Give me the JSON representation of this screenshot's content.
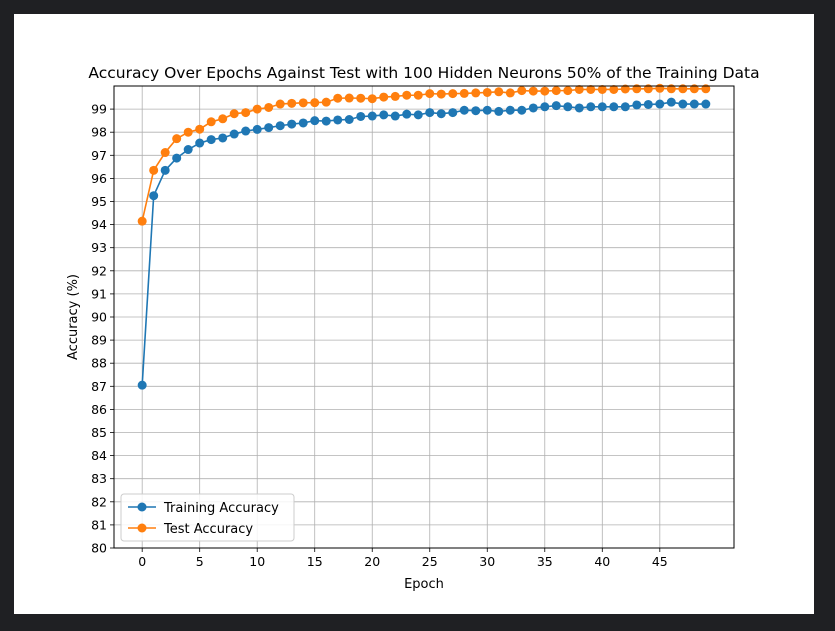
{
  "chart_data": {
    "type": "line",
    "title": "Accuracy Over Epochs Against Test with 100 Hidden Neurons 50% of the Training Data",
    "xlabel": "Epoch",
    "ylabel": "Accuracy (%)",
    "xlim": [
      -2.45,
      51.45
    ],
    "ylim": [
      80,
      100
    ],
    "xticks": [
      0,
      5,
      10,
      15,
      20,
      25,
      30,
      35,
      40,
      45
    ],
    "yticks": [
      80,
      81,
      82,
      83,
      84,
      85,
      86,
      87,
      88,
      89,
      90,
      91,
      92,
      93,
      94,
      95,
      96,
      97,
      98,
      99
    ],
    "grid": true,
    "legend_position": "lower-left",
    "x": [
      0,
      1,
      2,
      3,
      4,
      5,
      6,
      7,
      8,
      9,
      10,
      11,
      12,
      13,
      14,
      15,
      16,
      17,
      18,
      19,
      20,
      21,
      22,
      23,
      24,
      25,
      26,
      27,
      28,
      29,
      30,
      31,
      32,
      33,
      34,
      35,
      36,
      37,
      38,
      39,
      40,
      41,
      42,
      43,
      44,
      45,
      46,
      47,
      48,
      49
    ],
    "series": [
      {
        "name": "Training Accuracy",
        "color": "#1f77b4",
        "values": [
          87.05,
          95.25,
          96.35,
          96.88,
          97.25,
          97.53,
          97.68,
          97.75,
          97.92,
          98.05,
          98.12,
          98.2,
          98.28,
          98.35,
          98.4,
          98.5,
          98.48,
          98.53,
          98.55,
          98.68,
          98.7,
          98.75,
          98.7,
          98.78,
          98.75,
          98.85,
          98.8,
          98.85,
          98.95,
          98.93,
          98.95,
          98.9,
          98.95,
          98.95,
          99.05,
          99.1,
          99.15,
          99.1,
          99.05,
          99.1,
          99.1,
          99.1,
          99.1,
          99.18,
          99.2,
          99.22,
          99.3,
          99.22,
          99.22,
          99.22
        ]
      },
      {
        "name": "Test Accuracy",
        "color": "#ff7f0e",
        "values": [
          94.15,
          96.35,
          97.12,
          97.72,
          98.0,
          98.13,
          98.45,
          98.58,
          98.8,
          98.85,
          99.0,
          99.07,
          99.22,
          99.25,
          99.27,
          99.28,
          99.3,
          99.47,
          99.48,
          99.47,
          99.45,
          99.52,
          99.55,
          99.6,
          99.6,
          99.67,
          99.65,
          99.67,
          99.68,
          99.7,
          99.72,
          99.75,
          99.7,
          99.8,
          99.78,
          99.78,
          99.8,
          99.8,
          99.85,
          99.85,
          99.85,
          99.85,
          99.87,
          99.88,
          99.88,
          99.9,
          99.88,
          99.88,
          99.88,
          99.88
        ]
      }
    ]
  }
}
